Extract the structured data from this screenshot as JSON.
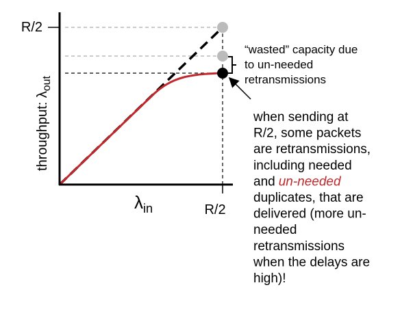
{
  "axes": {
    "y_label": "throughput: λ",
    "y_label_sub": "out",
    "x_label": "λ",
    "x_label_sub": "in",
    "y_tick": "R/2",
    "x_tick": "R/2"
  },
  "wasted_note": {
    "lines": [
      "“wasted” capacity due",
      "to un-needed",
      "retransmissions"
    ]
  },
  "note": {
    "lines": [
      "when sending at",
      "R/2, some packets",
      "are retransmissions,",
      "including needed",
      {
        "before": "and",
        "emphasis": "un-needed"
      },
      "duplicates, that are",
      "delivered (more un-",
      "needed",
      "retransmissions",
      "when the delays are",
      "high)!"
    ]
  }
}
